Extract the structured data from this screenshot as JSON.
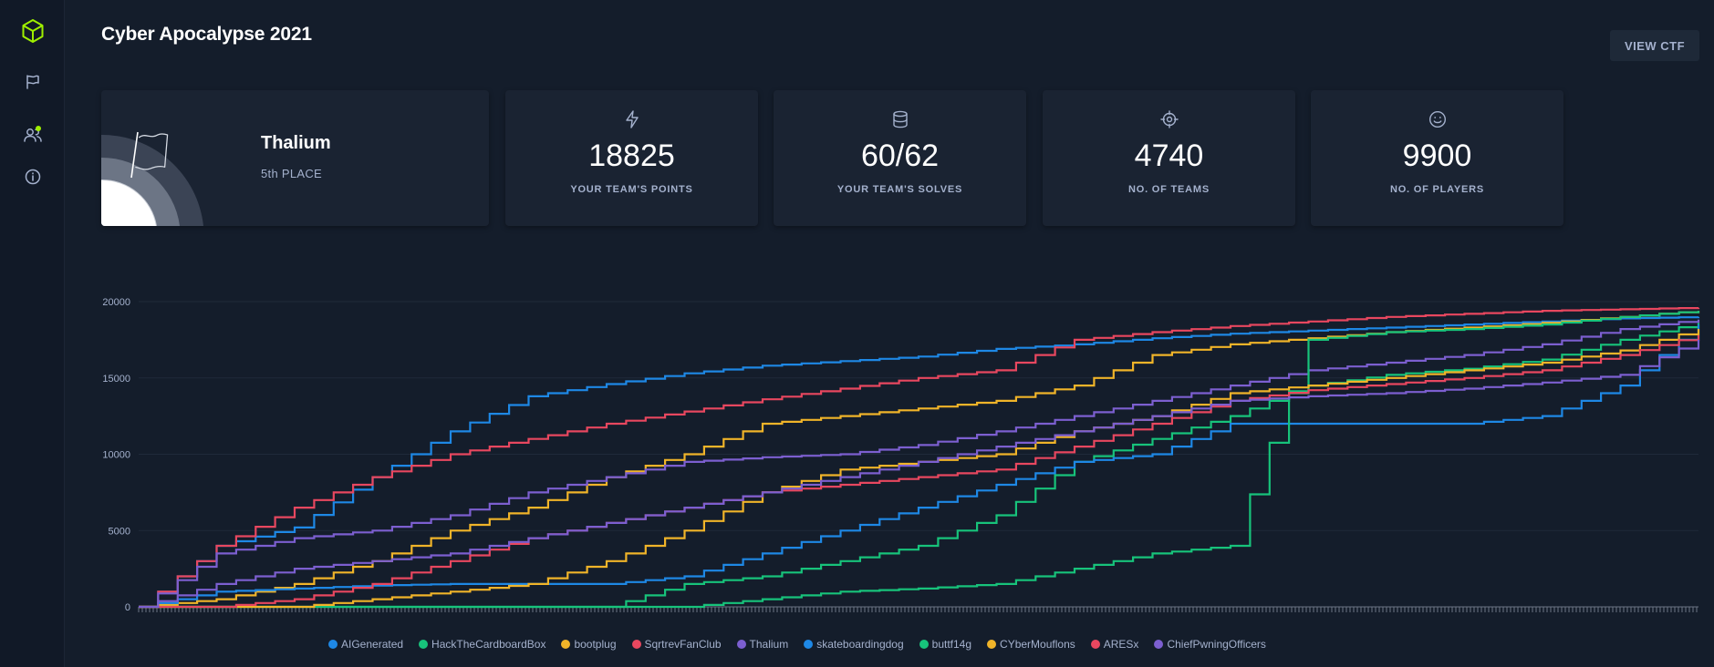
{
  "nav": {
    "items": [
      {
        "name": "hackthebox-logo-icon"
      },
      {
        "name": "flag-icon"
      },
      {
        "name": "team-icon"
      },
      {
        "name": "info-icon"
      }
    ]
  },
  "header": {
    "title": "Cyber Apocalypse 2021",
    "view_ctf_label": "VIEW CTF"
  },
  "team": {
    "name": "Thalium",
    "place": "5th PLACE"
  },
  "stats": [
    {
      "icon": "lightning-icon",
      "value": "18825",
      "label": "YOUR TEAM'S POINTS"
    },
    {
      "icon": "database-icon",
      "value": "60/62",
      "label": "YOUR TEAM'S SOLVES"
    },
    {
      "icon": "target-icon",
      "value": "4740",
      "label": "NO. OF TEAMS"
    },
    {
      "icon": "smiley-icon",
      "value": "9900",
      "label": "NO. OF PLAYERS"
    }
  ],
  "colors": {
    "accent": "#9fef00",
    "background": "#141d2b",
    "card": "#1a2332",
    "muted_text": "#a4b1cd"
  },
  "chart_data": {
    "type": "line",
    "ylim": [
      0,
      20000
    ],
    "yticks": [
      "0",
      "5000",
      "10000",
      "15000",
      "20000"
    ],
    "x": [
      0,
      5,
      10,
      15,
      20,
      25,
      30,
      35,
      40,
      45,
      50,
      55,
      60,
      65,
      70,
      75,
      80,
      85,
      90,
      95,
      100
    ],
    "series": [
      {
        "name": "AIGenerated",
        "color": "#1e88e5",
        "values": [
          0,
          4000,
          5200,
          8500,
          11500,
          13800,
          14600,
          15300,
          15800,
          16100,
          16400,
          16900,
          17200,
          17600,
          17900,
          18100,
          18300,
          18500,
          18700,
          18900,
          19000
        ]
      },
      {
        "name": "HackTheCardboardBox",
        "color": "#17c37b",
        "values": [
          0,
          0,
          0,
          0,
          0,
          0,
          0,
          1500,
          2000,
          3000,
          4000,
          6000,
          9500,
          11000,
          12500,
          14500,
          15200,
          15600,
          16200,
          17500,
          18600
        ]
      },
      {
        "name": "bootplug",
        "color": "#f0b429",
        "values": [
          0,
          500,
          1500,
          3000,
          5000,
          6500,
          8500,
          10000,
          12000,
          12500,
          13000,
          13500,
          14500,
          16500,
          17200,
          17600,
          18000,
          18300,
          18600,
          19000,
          19400
        ]
      },
      {
        "name": "SqrtrevFanClub",
        "color": "#e8475f",
        "values": [
          0,
          4000,
          6500,
          8500,
          10000,
          11000,
          12000,
          12800,
          13600,
          14300,
          15000,
          15500,
          17500,
          18000,
          18400,
          18700,
          19000,
          19200,
          19400,
          19500,
          19600
        ]
      },
      {
        "name": "Thalium",
        "color": "#7c5fd0",
        "values": [
          0,
          3500,
          4500,
          5000,
          6000,
          7500,
          8500,
          9500,
          9800,
          10000,
          10600,
          11500,
          12500,
          13500,
          14500,
          15500,
          16000,
          16500,
          17200,
          18200,
          18825
        ]
      },
      {
        "name": "skateboardingdog",
        "color": "#1e88e5",
        "values": [
          0,
          1000,
          1200,
          1400,
          1500,
          1500,
          1500,
          2000,
          3500,
          5000,
          6500,
          8000,
          9500,
          10000,
          12000,
          12000,
          12000,
          12000,
          12500,
          14500,
          18500
        ]
      },
      {
        "name": "buttf14g",
        "color": "#17c37b",
        "values": [
          0,
          0,
          0,
          0,
          0,
          0,
          0,
          0,
          500,
          1000,
          1200,
          1500,
          2500,
          3500,
          4000,
          17500,
          18000,
          18200,
          18500,
          19000,
          19400
        ]
      },
      {
        "name": "CYberMouflons",
        "color": "#f0b429",
        "values": [
          0,
          0,
          0,
          500,
          1000,
          1500,
          3000,
          5000,
          7500,
          9000,
          9500,
          10000,
          11500,
          12500,
          14000,
          14500,
          15000,
          15500,
          16000,
          16800,
          18200
        ]
      },
      {
        "name": "ARESx",
        "color": "#e8475f",
        "values": [
          0,
          0,
          500,
          1500,
          3000,
          4500,
          5500,
          6500,
          7500,
          8000,
          8500,
          9000,
          10500,
          12000,
          13500,
          14200,
          14600,
          15000,
          15500,
          16500,
          17800
        ]
      },
      {
        "name": "ChiefPwningOfficers",
        "color": "#7c5fd0",
        "values": [
          0,
          1500,
          2500,
          3000,
          3500,
          4500,
          5500,
          6500,
          7500,
          8500,
          9500,
          10500,
          11500,
          12500,
          13500,
          13800,
          14000,
          14300,
          14700,
          15200,
          17500
        ]
      }
    ]
  }
}
